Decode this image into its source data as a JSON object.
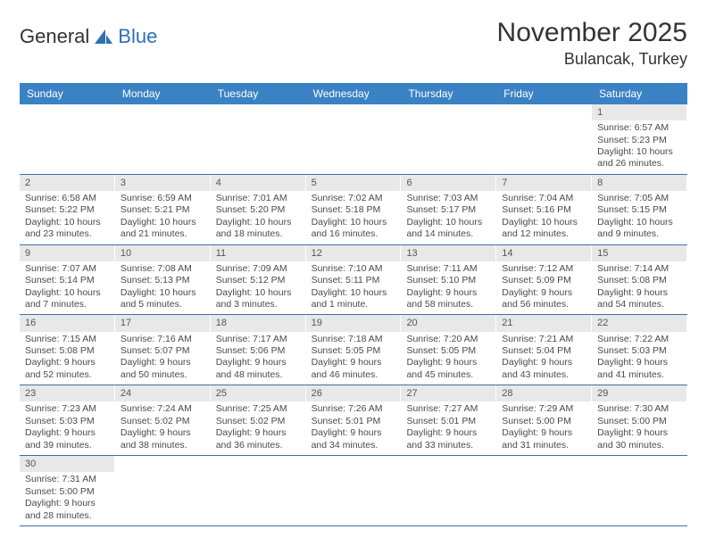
{
  "logo": {
    "text1": "General",
    "text2": "Blue",
    "accent": "#2f6fb3"
  },
  "title": "November 2025",
  "location": "Bulancak, Turkey",
  "colors": {
    "header_bg": "#3b82c4",
    "header_text": "#ffffff",
    "band_bg": "#e8e8e8",
    "rule": "#3b6ea8",
    "text": "#4a4a4a"
  },
  "weekdays": [
    "Sunday",
    "Monday",
    "Tuesday",
    "Wednesday",
    "Thursday",
    "Friday",
    "Saturday"
  ],
  "weeks": [
    [
      {
        "d": "",
        "lines": []
      },
      {
        "d": "",
        "lines": []
      },
      {
        "d": "",
        "lines": []
      },
      {
        "d": "",
        "lines": []
      },
      {
        "d": "",
        "lines": []
      },
      {
        "d": "",
        "lines": []
      },
      {
        "d": "1",
        "lines": [
          "Sunrise: 6:57 AM",
          "Sunset: 5:23 PM",
          "Daylight: 10 hours",
          "and 26 minutes."
        ]
      }
    ],
    [
      {
        "d": "2",
        "lines": [
          "Sunrise: 6:58 AM",
          "Sunset: 5:22 PM",
          "Daylight: 10 hours",
          "and 23 minutes."
        ]
      },
      {
        "d": "3",
        "lines": [
          "Sunrise: 6:59 AM",
          "Sunset: 5:21 PM",
          "Daylight: 10 hours",
          "and 21 minutes."
        ]
      },
      {
        "d": "4",
        "lines": [
          "Sunrise: 7:01 AM",
          "Sunset: 5:20 PM",
          "Daylight: 10 hours",
          "and 18 minutes."
        ]
      },
      {
        "d": "5",
        "lines": [
          "Sunrise: 7:02 AM",
          "Sunset: 5:18 PM",
          "Daylight: 10 hours",
          "and 16 minutes."
        ]
      },
      {
        "d": "6",
        "lines": [
          "Sunrise: 7:03 AM",
          "Sunset: 5:17 PM",
          "Daylight: 10 hours",
          "and 14 minutes."
        ]
      },
      {
        "d": "7",
        "lines": [
          "Sunrise: 7:04 AM",
          "Sunset: 5:16 PM",
          "Daylight: 10 hours",
          "and 12 minutes."
        ]
      },
      {
        "d": "8",
        "lines": [
          "Sunrise: 7:05 AM",
          "Sunset: 5:15 PM",
          "Daylight: 10 hours",
          "and 9 minutes."
        ]
      }
    ],
    [
      {
        "d": "9",
        "lines": [
          "Sunrise: 7:07 AM",
          "Sunset: 5:14 PM",
          "Daylight: 10 hours",
          "and 7 minutes."
        ]
      },
      {
        "d": "10",
        "lines": [
          "Sunrise: 7:08 AM",
          "Sunset: 5:13 PM",
          "Daylight: 10 hours",
          "and 5 minutes."
        ]
      },
      {
        "d": "11",
        "lines": [
          "Sunrise: 7:09 AM",
          "Sunset: 5:12 PM",
          "Daylight: 10 hours",
          "and 3 minutes."
        ]
      },
      {
        "d": "12",
        "lines": [
          "Sunrise: 7:10 AM",
          "Sunset: 5:11 PM",
          "Daylight: 10 hours",
          "and 1 minute."
        ]
      },
      {
        "d": "13",
        "lines": [
          "Sunrise: 7:11 AM",
          "Sunset: 5:10 PM",
          "Daylight: 9 hours",
          "and 58 minutes."
        ]
      },
      {
        "d": "14",
        "lines": [
          "Sunrise: 7:12 AM",
          "Sunset: 5:09 PM",
          "Daylight: 9 hours",
          "and 56 minutes."
        ]
      },
      {
        "d": "15",
        "lines": [
          "Sunrise: 7:14 AM",
          "Sunset: 5:08 PM",
          "Daylight: 9 hours",
          "and 54 minutes."
        ]
      }
    ],
    [
      {
        "d": "16",
        "lines": [
          "Sunrise: 7:15 AM",
          "Sunset: 5:08 PM",
          "Daylight: 9 hours",
          "and 52 minutes."
        ]
      },
      {
        "d": "17",
        "lines": [
          "Sunrise: 7:16 AM",
          "Sunset: 5:07 PM",
          "Daylight: 9 hours",
          "and 50 minutes."
        ]
      },
      {
        "d": "18",
        "lines": [
          "Sunrise: 7:17 AM",
          "Sunset: 5:06 PM",
          "Daylight: 9 hours",
          "and 48 minutes."
        ]
      },
      {
        "d": "19",
        "lines": [
          "Sunrise: 7:18 AM",
          "Sunset: 5:05 PM",
          "Daylight: 9 hours",
          "and 46 minutes."
        ]
      },
      {
        "d": "20",
        "lines": [
          "Sunrise: 7:20 AM",
          "Sunset: 5:05 PM",
          "Daylight: 9 hours",
          "and 45 minutes."
        ]
      },
      {
        "d": "21",
        "lines": [
          "Sunrise: 7:21 AM",
          "Sunset: 5:04 PM",
          "Daylight: 9 hours",
          "and 43 minutes."
        ]
      },
      {
        "d": "22",
        "lines": [
          "Sunrise: 7:22 AM",
          "Sunset: 5:03 PM",
          "Daylight: 9 hours",
          "and 41 minutes."
        ]
      }
    ],
    [
      {
        "d": "23",
        "lines": [
          "Sunrise: 7:23 AM",
          "Sunset: 5:03 PM",
          "Daylight: 9 hours",
          "and 39 minutes."
        ]
      },
      {
        "d": "24",
        "lines": [
          "Sunrise: 7:24 AM",
          "Sunset: 5:02 PM",
          "Daylight: 9 hours",
          "and 38 minutes."
        ]
      },
      {
        "d": "25",
        "lines": [
          "Sunrise: 7:25 AM",
          "Sunset: 5:02 PM",
          "Daylight: 9 hours",
          "and 36 minutes."
        ]
      },
      {
        "d": "26",
        "lines": [
          "Sunrise: 7:26 AM",
          "Sunset: 5:01 PM",
          "Daylight: 9 hours",
          "and 34 minutes."
        ]
      },
      {
        "d": "27",
        "lines": [
          "Sunrise: 7:27 AM",
          "Sunset: 5:01 PM",
          "Daylight: 9 hours",
          "and 33 minutes."
        ]
      },
      {
        "d": "28",
        "lines": [
          "Sunrise: 7:29 AM",
          "Sunset: 5:00 PM",
          "Daylight: 9 hours",
          "and 31 minutes."
        ]
      },
      {
        "d": "29",
        "lines": [
          "Sunrise: 7:30 AM",
          "Sunset: 5:00 PM",
          "Daylight: 9 hours",
          "and 30 minutes."
        ]
      }
    ],
    [
      {
        "d": "30",
        "lines": [
          "Sunrise: 7:31 AM",
          "Sunset: 5:00 PM",
          "Daylight: 9 hours",
          "and 28 minutes."
        ]
      },
      {
        "d": "",
        "lines": []
      },
      {
        "d": "",
        "lines": []
      },
      {
        "d": "",
        "lines": []
      },
      {
        "d": "",
        "lines": []
      },
      {
        "d": "",
        "lines": []
      },
      {
        "d": "",
        "lines": []
      }
    ]
  ]
}
